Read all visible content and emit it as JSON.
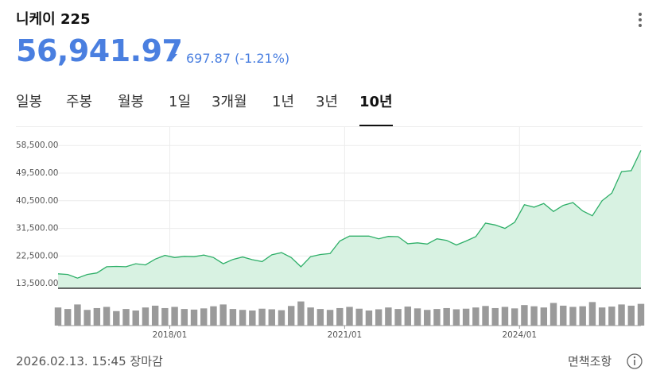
{
  "header": {
    "title": "니케이 225",
    "price": "56,941.97",
    "change": "697.87 (-1.21%)"
  },
  "tabs": [
    "일봉",
    "주봉",
    "월봉",
    "1일",
    "3개월",
    "1년",
    "3년",
    "10년"
  ],
  "selected_tab": 7,
  "footer": {
    "time": "2026.02.13. 15:45 장마감",
    "disclaimer": "면책조항"
  },
  "chart_data": {
    "type": "area",
    "x": [
      "2016/02",
      "2016/04",
      "2016/06",
      "2016/08",
      "2016/10",
      "2016/12",
      "2017/02",
      "2017/04",
      "2017/06",
      "2017/08",
      "2017/10",
      "2017/12",
      "2018/02",
      "2018/04",
      "2018/06",
      "2018/08",
      "2018/10",
      "2018/12",
      "2019/02",
      "2019/04",
      "2019/06",
      "2019/08",
      "2019/10",
      "2019/12",
      "2020/02",
      "2020/04",
      "2020/06",
      "2020/08",
      "2020/10",
      "2020/12",
      "2021/02",
      "2021/04",
      "2021/06",
      "2021/08",
      "2021/10",
      "2021/12",
      "2022/02",
      "2022/04",
      "2022/06",
      "2022/08",
      "2022/10",
      "2022/12",
      "2023/02",
      "2023/04",
      "2023/06",
      "2023/08",
      "2023/10",
      "2023/12",
      "2024/02",
      "2024/04",
      "2024/06",
      "2024/08",
      "2024/10",
      "2024/12",
      "2025/02",
      "2025/04",
      "2025/06",
      "2025/08",
      "2025/10",
      "2025/12",
      "2026/02"
    ],
    "series": [
      {
        "color": "#2eaf68",
        "values": [
          16700,
          16500,
          15300,
          16500,
          17000,
          19000,
          19100,
          19000,
          20000,
          19600,
          21500,
          22700,
          22000,
          22400,
          22300,
          22800,
          22000,
          20000,
          21400,
          22200,
          21300,
          20700,
          22900,
          23600,
          22000,
          19000,
          22300,
          23000,
          23300,
          27400,
          29000,
          29000,
          29000,
          28100,
          28900,
          28800,
          26500,
          26800,
          26400,
          28100,
          27600,
          26100,
          27400,
          28800,
          33200,
          32600,
          31500,
          33500,
          39200,
          38400,
          39600,
          37000,
          39000,
          39900,
          37200,
          35600,
          40500,
          43000,
          50000,
          50300,
          56900
        ]
      }
    ],
    "volume": [
      60,
      55,
      70,
      52,
      58,
      62,
      48,
      55,
      50,
      60,
      66,
      58,
      62,
      55,
      53,
      57,
      64,
      70,
      55,
      52,
      50,
      56,
      54,
      51,
      65,
      80,
      60,
      55,
      52,
      58,
      62,
      56,
      50,
      54,
      60,
      55,
      63,
      57,
      52,
      55,
      58,
      54,
      56,
      60,
      65,
      58,
      62,
      57,
      68,
      64,
      60,
      75,
      66,
      62,
      64,
      78,
      60,
      63,
      70,
      66,
      72
    ],
    "xlim": [
      "2016/02",
      "2026/02"
    ],
    "xticks": [
      "2018/01",
      "2021/01",
      "2024/01"
    ],
    "ylim": [
      12000,
      64500
    ],
    "yticks": [
      {
        "value": 13500,
        "label": "13,500.00"
      },
      {
        "value": 22500,
        "label": "22,500.00"
      },
      {
        "value": 31500,
        "label": "31,500.00"
      },
      {
        "value": 40500,
        "label": "40,500.00"
      },
      {
        "value": 49500,
        "label": "49,500.00"
      },
      {
        "value": 58500,
        "label": "58,500.00"
      }
    ],
    "grid": true
  }
}
